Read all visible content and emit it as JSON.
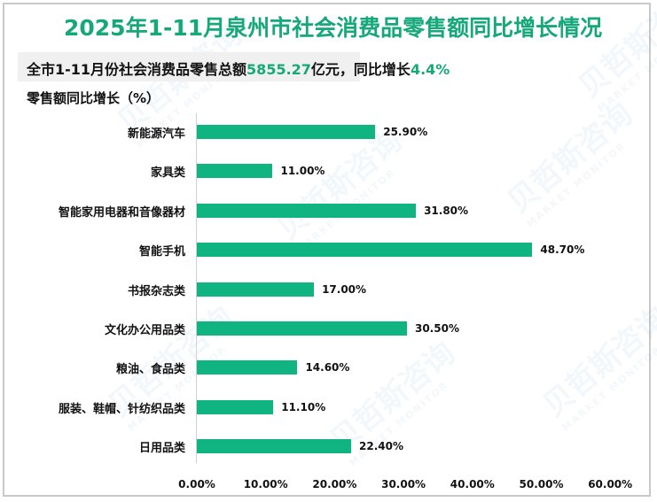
{
  "title": "2025年1-11月泉州市社会消费品零售额同比增长情况",
  "summary": {
    "prefix": "全市1-11月份社会消费品零售总额",
    "total": "5855.27",
    "middle": "亿元，同比增长",
    "growth": "4.4%"
  },
  "y_axis_title": "零售额同比增长（%）",
  "watermark": {
    "cn": "贝哲斯咨询",
    "en": "MARKET MONITOR"
  },
  "colors": {
    "bar": "#10b480",
    "title": "#15a878",
    "highlight": "#15a878"
  },
  "chart_data": {
    "type": "bar",
    "orientation": "horizontal",
    "title": "2025年1-11月泉州市社会消费品零售额同比增长情况",
    "subtitle": "全市1-11月份社会消费品零售总额5855.27亿元，同比增长4.4%",
    "xlabel": "",
    "ylabel": "零售额同比增长（%）",
    "categories": [
      "新能源汽车",
      "家具类",
      "智能家用电器和音像器材",
      "智能手机",
      "书报杂志类",
      "文化办公用品类",
      "粮油、食品类",
      "服装、鞋帽、针纺织品类",
      "日用品类"
    ],
    "values": [
      25.9,
      11.0,
      31.8,
      48.7,
      17.0,
      30.5,
      14.6,
      11.1,
      22.4
    ],
    "value_labels": [
      "25.90%",
      "11.00%",
      "31.80%",
      "48.70%",
      "17.00%",
      "30.50%",
      "14.60%",
      "11.10%",
      "22.40%"
    ],
    "xlim": [
      0,
      60
    ],
    "x_ticks": [
      "0.00%",
      "10.00%",
      "20.00%",
      "30.00%",
      "40.00%",
      "50.00%",
      "60.00%"
    ],
    "grid": false,
    "legend": null
  }
}
